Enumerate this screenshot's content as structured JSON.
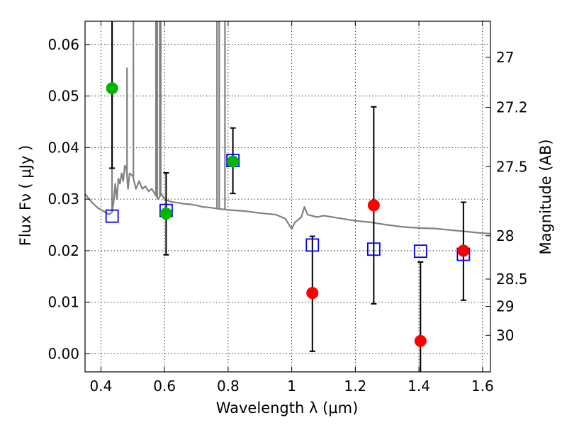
{
  "chart_data": {
    "type": "scatter",
    "title": "",
    "xlabel": "Wavelength  λ (μm)",
    "ylabel": "Flux  Fν  ( μJy )",
    "ylabel_right": "Magnitude (AB)",
    "xlim": [
      0.35,
      1.625
    ],
    "ylim": [
      -0.0035,
      0.0645
    ],
    "grid": true,
    "x_ticks": [
      0.4,
      0.6,
      0.8,
      1.0,
      1.2,
      1.4,
      1.6
    ],
    "x_tick_labels": [
      "0.4",
      "0.6",
      "0.8",
      "1",
      "1.2",
      "1.4",
      "1.6"
    ],
    "y_ticks": [
      0.0,
      0.01,
      0.02,
      0.03,
      0.04,
      0.05,
      0.06
    ],
    "y_tick_labels": [
      "0.00",
      "0.01",
      "0.02",
      "0.03",
      "0.04",
      "0.05",
      "0.06"
    ],
    "mag_ticks": [
      {
        "label": "27",
        "flux": 0.0575
      },
      {
        "label": "27.2",
        "flux": 0.0478
      },
      {
        "label": "27.5",
        "flux": 0.0363
      },
      {
        "label": "28",
        "flux": 0.0229
      },
      {
        "label": "28.5",
        "flux": 0.0145
      },
      {
        "label": "29",
        "flux": 0.0092
      },
      {
        "label": "30",
        "flux": 0.0036
      }
    ],
    "colors": {
      "model": "#808080",
      "green": "#00b400",
      "red": "#ff0000",
      "square": "#0000ff",
      "errorbar": "#000000"
    },
    "series": [
      {
        "type": "line",
        "points": [
          [
            0.35,
            0.031
          ],
          [
            0.37,
            0.0295
          ],
          [
            0.39,
            0.0283
          ],
          [
            0.41,
            0.0276
          ],
          [
            0.425,
            0.027
          ],
          [
            0.435,
            0.0275
          ],
          [
            0.44,
            0.0295
          ],
          [
            0.445,
            0.033
          ],
          [
            0.45,
            0.03
          ],
          [
            0.455,
            0.034
          ],
          [
            0.46,
            0.033
          ],
          [
            0.465,
            0.035
          ],
          [
            0.47,
            0.0335
          ],
          [
            0.475,
            0.0365
          ],
          [
            0.48,
            0.036
          ],
          [
            0.485,
            0.032
          ],
          [
            0.49,
            0.035
          ],
          [
            0.5,
            0.0345
          ],
          [
            0.51,
            0.032
          ],
          [
            0.52,
            0.0335
          ],
          [
            0.53,
            0.032
          ],
          [
            0.54,
            0.0325
          ],
          [
            0.55,
            0.0315
          ],
          [
            0.56,
            0.032
          ],
          [
            0.57,
            0.031
          ],
          [
            0.58,
            0.03
          ],
          [
            0.59,
            0.031
          ],
          [
            0.6,
            0.03
          ],
          [
            0.62,
            0.0295
          ],
          [
            0.64,
            0.0293
          ],
          [
            0.66,
            0.0291
          ],
          [
            0.68,
            0.029
          ],
          [
            0.7,
            0.0288
          ],
          [
            0.72,
            0.0285
          ],
          [
            0.74,
            0.0284
          ],
          [
            0.76,
            0.0282
          ],
          [
            0.8,
            0.0279
          ],
          [
            0.85,
            0.0277
          ],
          [
            0.9,
            0.0273
          ],
          [
            0.95,
            0.027
          ],
          [
            0.98,
            0.0262
          ],
          [
            1.0,
            0.0242
          ],
          [
            1.01,
            0.0255
          ],
          [
            1.03,
            0.0265
          ],
          [
            1.04,
            0.0285
          ],
          [
            1.05,
            0.027
          ],
          [
            1.08,
            0.0265
          ],
          [
            1.1,
            0.0268
          ],
          [
            1.15,
            0.0263
          ],
          [
            1.2,
            0.0258
          ],
          [
            1.25,
            0.0255
          ],
          [
            1.3,
            0.025
          ],
          [
            1.35,
            0.0246
          ],
          [
            1.4,
            0.0244
          ],
          [
            1.45,
            0.0243
          ],
          [
            1.5,
            0.024
          ],
          [
            1.55,
            0.0237
          ],
          [
            1.6,
            0.0234
          ],
          [
            1.625,
            0.0233
          ]
        ],
        "spikes": [
          [
            0.435,
            0.0645
          ],
          [
            0.482,
            0.0555
          ],
          [
            0.502,
            0.0645
          ],
          [
            0.573,
            0.0645
          ],
          [
            0.577,
            0.0645
          ],
          [
            0.585,
            0.0645
          ],
          [
            0.588,
            0.0645
          ],
          [
            0.765,
            0.0645
          ],
          [
            0.772,
            0.0645
          ],
          [
            0.79,
            0.0645
          ]
        ]
      },
      {
        "type": "square",
        "points": [
          [
            0.435,
            0.0267
          ],
          [
            0.605,
            0.0278
          ],
          [
            0.815,
            0.0375
          ],
          [
            1.065,
            0.0211
          ],
          [
            1.258,
            0.0203
          ],
          [
            1.405,
            0.0199
          ],
          [
            1.54,
            0.0193
          ]
        ]
      },
      {
        "type": "errorbar",
        "points": [
          {
            "x": 0.435,
            "low": 0.036,
            "high": 0.0645
          },
          {
            "x": 0.605,
            "low": 0.0192,
            "high": 0.0351
          },
          {
            "x": 0.815,
            "low": 0.0311,
            "high": 0.0438
          },
          {
            "x": 1.065,
            "low": 0.0005,
            "high": 0.0228
          },
          {
            "x": 1.258,
            "low": 0.0097,
            "high": 0.0479
          },
          {
            "x": 1.405,
            "low": -0.0035,
            "high": 0.0178
          },
          {
            "x": 1.54,
            "low": 0.0104,
            "high": 0.0294
          }
        ]
      },
      {
        "type": "green-circle",
        "points": [
          [
            0.435,
            0.0515
          ],
          [
            0.605,
            0.0272
          ],
          [
            0.815,
            0.0373
          ]
        ]
      },
      {
        "type": "red-circle",
        "points": [
          [
            1.065,
            0.0118
          ],
          [
            1.258,
            0.0288
          ],
          [
            1.405,
            0.0025
          ],
          [
            1.54,
            0.02
          ]
        ]
      }
    ]
  }
}
